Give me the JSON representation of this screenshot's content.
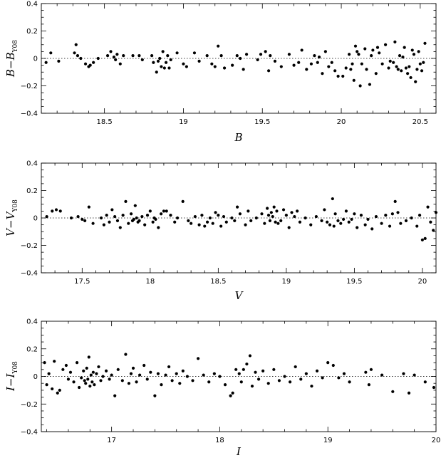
{
  "chart_data": [
    {
      "type": "scatter",
      "xlabel": "B",
      "ylabel": "B−B_Y08",
      "ylabel_main": "B−B",
      "ylabel_sub": "Y08",
      "xlim": [
        18.1,
        20.6
      ],
      "ylim": [
        -0.4,
        0.4
      ],
      "x_ticks": [
        18.5,
        19,
        19.5,
        20,
        20.5
      ],
      "x_tick_labels": [
        "18.5",
        "19",
        "19.5",
        "20",
        "20.5"
      ],
      "y_ticks": [
        -0.4,
        -0.2,
        0,
        0.2,
        0.4
      ],
      "y_tick_labels": [
        "−0.4",
        "−0.2",
        "0",
        "0.2",
        "0.4"
      ],
      "reference_line": 0,
      "x": [
        18.13,
        18.16,
        18.21,
        18.31,
        18.32,
        18.33,
        18.35,
        18.38,
        18.4,
        18.41,
        18.43,
        18.46,
        18.52,
        18.54,
        18.56,
        18.57,
        18.58,
        18.6,
        18.62,
        18.68,
        18.72,
        18.74,
        18.8,
        18.81,
        18.83,
        18.84,
        18.85,
        18.86,
        18.87,
        18.88,
        18.89,
        18.9,
        18.91,
        18.92,
        18.96,
        19.0,
        19.02,
        19.07,
        19.1,
        19.15,
        19.18,
        19.2,
        19.22,
        19.24,
        19.26,
        19.31,
        19.34,
        19.36,
        19.38,
        19.4,
        19.47,
        19.49,
        19.52,
        19.54,
        19.55,
        19.58,
        19.62,
        19.67,
        19.7,
        19.73,
        19.75,
        19.78,
        19.81,
        19.83,
        19.85,
        19.86,
        19.88,
        19.9,
        19.92,
        19.94,
        19.96,
        19.98,
        20.01,
        20.03,
        20.05,
        20.06,
        20.07,
        20.08,
        20.09,
        20.1,
        20.11,
        20.12,
        20.13,
        20.15,
        20.16,
        20.18,
        20.19,
        20.2,
        20.22,
        20.23,
        20.24,
        20.26,
        20.28,
        20.3,
        20.31,
        20.33,
        20.34,
        20.35,
        20.36,
        20.37,
        20.38,
        20.39,
        20.4,
        20.41,
        20.42,
        20.43,
        20.44,
        20.45,
        20.46,
        20.47,
        20.48,
        20.49,
        20.5,
        20.51,
        20.52,
        20.53
      ],
      "y": [
        -0.03,
        0.04,
        -0.02,
        0.04,
        0.1,
        0.02,
        0.0,
        -0.04,
        -0.06,
        -0.05,
        -0.03,
        0.0,
        0.02,
        0.05,
        0.01,
        -0.01,
        0.03,
        -0.04,
        0.02,
        0.02,
        0.02,
        -0.01,
        0.02,
        -0.03,
        -0.1,
        -0.02,
        0.0,
        -0.06,
        0.05,
        -0.07,
        -0.03,
        0.02,
        -0.07,
        -0.01,
        0.04,
        -0.04,
        -0.06,
        0.04,
        -0.02,
        0.02,
        -0.04,
        -0.06,
        0.09,
        0.02,
        -0.07,
        -0.05,
        0.02,
        0.0,
        -0.08,
        0.03,
        -0.01,
        0.03,
        0.05,
        -0.09,
        0.02,
        -0.02,
        -0.06,
        0.03,
        -0.05,
        -0.03,
        0.06,
        -0.08,
        -0.04,
        0.02,
        -0.03,
        0.01,
        -0.11,
        0.05,
        -0.06,
        -0.03,
        -0.09,
        -0.13,
        -0.13,
        -0.07,
        0.03,
        -0.08,
        -0.04,
        -0.16,
        0.09,
        0.05,
        0.03,
        -0.2,
        -0.04,
        0.07,
        -0.08,
        -0.19,
        0.02,
        0.06,
        -0.11,
        0.08,
        0.04,
        -0.04,
        0.1,
        -0.07,
        -0.02,
        -0.03,
        0.12,
        -0.06,
        -0.08,
        0.02,
        -0.09,
        0.01,
        0.08,
        -0.07,
        -0.11,
        -0.06,
        -0.14,
        0.06,
        0.03,
        -0.17,
        -0.08,
        0.05,
        -0.04,
        -0.09,
        -0.03,
        0.11
      ]
    },
    {
      "type": "scatter",
      "xlabel": "V",
      "ylabel": "V−V_Y08",
      "ylabel_main": "V−V",
      "ylabel_sub": "Y08",
      "xlim": [
        17.2,
        20.1
      ],
      "ylim": [
        -0.4,
        0.4
      ],
      "x_ticks": [
        17.5,
        18,
        18.5,
        19,
        19.5,
        20
      ],
      "x_tick_labels": [
        "17.5",
        "18",
        "18.5",
        "19",
        "19.5",
        "20"
      ],
      "y_ticks": [
        -0.4,
        -0.2,
        0,
        0.2,
        0.4
      ],
      "y_tick_labels": [
        "−0.4",
        "−0.2",
        "0",
        "0.2",
        "0.4"
      ],
      "reference_line": 0,
      "x": [
        17.24,
        17.28,
        17.31,
        17.34,
        17.42,
        17.47,
        17.5,
        17.52,
        17.55,
        17.58,
        17.64,
        17.66,
        17.68,
        17.7,
        17.72,
        17.74,
        17.76,
        17.78,
        17.8,
        17.82,
        17.84,
        17.86,
        17.87,
        17.88,
        17.89,
        17.9,
        17.91,
        17.92,
        17.94,
        17.96,
        17.98,
        18.0,
        18.02,
        18.03,
        18.04,
        18.06,
        18.08,
        18.1,
        18.12,
        18.15,
        18.18,
        18.2,
        18.24,
        18.28,
        18.3,
        18.33,
        18.36,
        18.38,
        18.4,
        18.42,
        18.44,
        18.46,
        18.48,
        18.5,
        18.52,
        18.54,
        18.56,
        18.6,
        18.62,
        18.64,
        18.66,
        18.7,
        18.72,
        18.74,
        18.78,
        18.82,
        18.84,
        18.86,
        18.87,
        18.88,
        18.89,
        18.9,
        18.91,
        18.92,
        18.93,
        18.94,
        18.96,
        18.98,
        19.0,
        19.02,
        19.04,
        19.06,
        19.08,
        19.1,
        19.14,
        19.18,
        19.22,
        19.26,
        19.28,
        19.3,
        19.32,
        19.34,
        19.35,
        19.36,
        19.38,
        19.4,
        19.42,
        19.44,
        19.46,
        19.48,
        19.5,
        19.52,
        19.55,
        19.58,
        19.6,
        19.63,
        19.66,
        19.7,
        19.73,
        19.76,
        19.78,
        19.8,
        19.82,
        19.84,
        19.88,
        19.92,
        19.96,
        19.98,
        20.0,
        20.02,
        20.04,
        20.06,
        20.08,
        20.1
      ],
      "y": [
        0.01,
        0.05,
        0.06,
        0.05,
        0.0,
        0.01,
        -0.01,
        -0.02,
        0.08,
        -0.04,
        0.0,
        -0.05,
        0.02,
        -0.03,
        0.06,
        0.01,
        -0.02,
        -0.07,
        0.02,
        0.12,
        -0.04,
        0.03,
        -0.02,
        -0.01,
        0.09,
        0.0,
        -0.03,
        -0.02,
        0.01,
        -0.05,
        0.02,
        0.05,
        -0.03,
        0.0,
        -0.01,
        -0.07,
        0.03,
        0.05,
        0.05,
        0.02,
        -0.03,
        0.0,
        0.12,
        -0.02,
        -0.04,
        0.01,
        -0.05,
        0.02,
        -0.06,
        -0.03,
        0.0,
        -0.04,
        0.04,
        0.02,
        -0.06,
        0.01,
        -0.03,
        0.0,
        -0.02,
        0.08,
        0.03,
        -0.05,
        0.05,
        -0.02,
        0.0,
        0.03,
        -0.04,
        0.07,
        0.02,
        -0.02,
        0.04,
        0.01,
        0.08,
        -0.03,
        0.05,
        -0.04,
        -0.02,
        0.06,
        0.02,
        -0.07,
        0.04,
        0.01,
        0.05,
        -0.03,
        0.0,
        -0.05,
        0.01,
        -0.02,
        0.06,
        -0.03,
        -0.05,
        0.14,
        -0.06,
        0.03,
        -0.02,
        -0.04,
        -0.01,
        0.05,
        -0.03,
        -0.01,
        0.03,
        -0.07,
        0.02,
        -0.05,
        -0.01,
        -0.08,
        0.01,
        -0.04,
        0.02,
        -0.06,
        0.03,
        0.12,
        0.04,
        -0.04,
        -0.02,
        0.0,
        -0.06,
        0.02,
        -0.16,
        -0.15,
        0.08,
        -0.03,
        -0.09,
        0.04
      ]
    },
    {
      "type": "scatter",
      "xlabel": "I",
      "ylabel": "I−I_Y08",
      "ylabel_main": "I−I",
      "ylabel_sub": "Y08",
      "xlim": [
        16.35,
        20.0
      ],
      "ylim": [
        -0.4,
        0.4
      ],
      "x_ticks": [
        17,
        18,
        19,
        20
      ],
      "x_tick_labels": [
        "17",
        "18",
        "19",
        "20"
      ],
      "y_ticks": [
        -0.4,
        -0.2,
        0,
        0.2,
        0.4
      ],
      "y_tick_labels": [
        "−0.4",
        "−0.2",
        "0",
        "0.2",
        "0.4"
      ],
      "reference_line": 0,
      "x": [
        16.38,
        16.4,
        16.42,
        16.45,
        16.47,
        16.5,
        16.52,
        16.55,
        16.58,
        16.6,
        16.62,
        16.65,
        16.68,
        16.7,
        16.72,
        16.74,
        16.75,
        16.76,
        16.77,
        16.78,
        16.79,
        16.8,
        16.81,
        16.82,
        16.83,
        16.84,
        16.86,
        16.88,
        16.9,
        16.92,
        16.95,
        16.98,
        17.0,
        17.03,
        17.06,
        17.1,
        17.13,
        17.16,
        17.18,
        17.2,
        17.23,
        17.26,
        17.3,
        17.33,
        17.36,
        17.4,
        17.43,
        17.46,
        17.5,
        17.53,
        17.56,
        17.6,
        17.63,
        17.66,
        17.7,
        17.75,
        17.8,
        17.85,
        17.9,
        17.95,
        18.0,
        18.05,
        18.1,
        18.12,
        18.15,
        18.18,
        18.2,
        18.22,
        18.25,
        18.28,
        18.3,
        18.33,
        18.36,
        18.4,
        18.45,
        18.5,
        18.55,
        18.6,
        18.65,
        18.7,
        18.75,
        18.8,
        18.85,
        18.9,
        18.95,
        19.0,
        19.05,
        19.1,
        19.15,
        19.2,
        19.35,
        19.38,
        19.4,
        19.5,
        19.6,
        19.7,
        19.75,
        19.8,
        19.9,
        19.98
      ],
      "y": [
        0.1,
        -0.06,
        0.02,
        -0.09,
        0.11,
        -0.12,
        -0.1,
        0.05,
        0.08,
        -0.02,
        0.03,
        -0.04,
        0.1,
        -0.08,
        -0.01,
        0.04,
        -0.03,
        -0.05,
        0.06,
        -0.02,
        0.14,
        -0.07,
        0.01,
        -0.04,
        0.03,
        -0.06,
        0.02,
        0.07,
        -0.03,
        0.0,
        0.04,
        -0.02,
        0.01,
        -0.14,
        0.05,
        -0.03,
        0.16,
        -0.05,
        0.02,
        0.06,
        -0.04,
        0.01,
        0.08,
        -0.02,
        0.03,
        -0.14,
        0.02,
        -0.06,
        0.01,
        0.07,
        -0.03,
        0.02,
        -0.05,
        0.04,
        0.0,
        -0.03,
        0.13,
        0.01,
        -0.04,
        0.02,
        0.0,
        -0.06,
        -0.14,
        -0.12,
        0.05,
        0.02,
        -0.04,
        0.05,
        0.09,
        0.15,
        -0.07,
        0.03,
        -0.02,
        0.04,
        -0.05,
        0.05,
        -0.03,
        0.0,
        -0.04,
        0.07,
        -0.02,
        0.02,
        -0.07,
        0.04,
        -0.01,
        0.1,
        0.08,
        -0.01,
        0.02,
        -0.04,
        0.03,
        -0.06,
        0.05,
        0.01,
        -0.11,
        0.02,
        -0.12,
        0.01,
        -0.04,
        -0.08
      ]
    }
  ]
}
